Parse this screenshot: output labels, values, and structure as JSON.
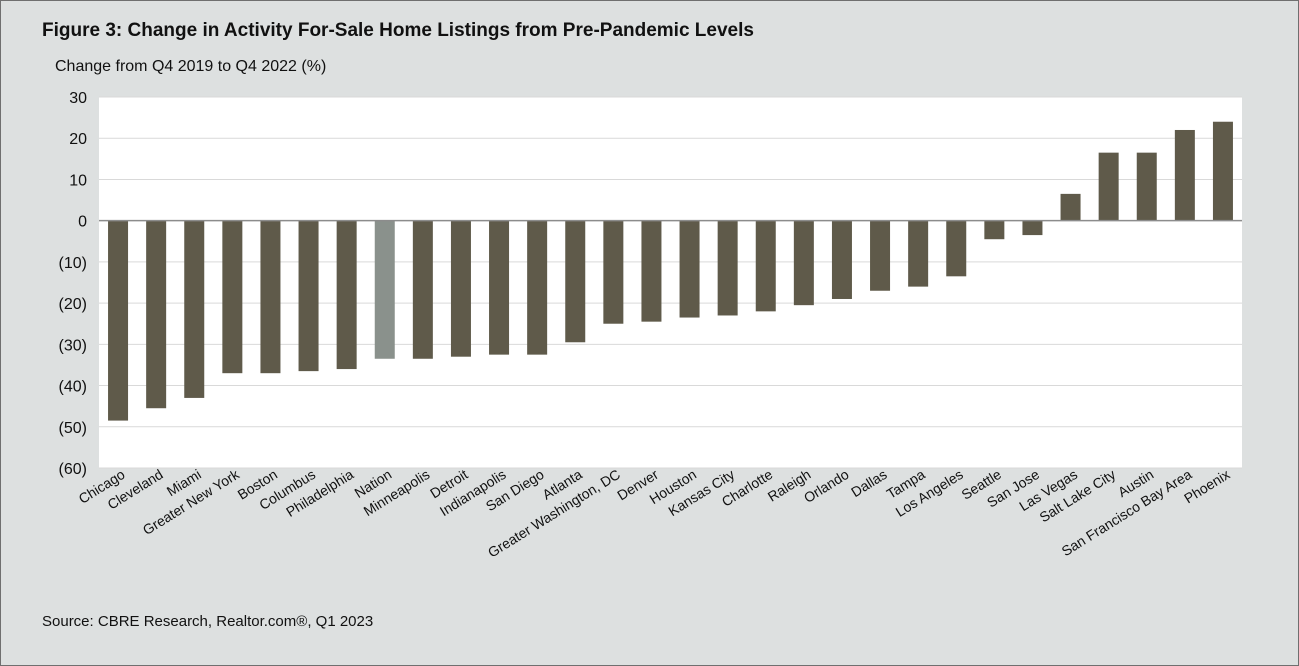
{
  "title": "Figure 3: Change in Activity For-Sale Home Listings from Pre-Pandemic Levels",
  "source": "Source: CBRE Research, Realtor.com®, Q1 2023",
  "colors": {
    "bar": "#5f5a4a",
    "highlight": "#8a918c",
    "plot_bg": "#ffffff",
    "grid": "#d9d9d9",
    "page_bg": "#dde0e0"
  },
  "chart_data": {
    "type": "bar",
    "title": "Figure 3: Change in Activity For-Sale Home Listings from Pre-Pandemic Levels",
    "ylabel": "Change from Q4 2019 to Q4 2022 (%)",
    "xlabel": "",
    "ylim": [
      -60,
      30
    ],
    "yticks": [
      30,
      20,
      10,
      0,
      -10,
      -20,
      -30,
      -40,
      -50,
      -60
    ],
    "ytick_labels": [
      "30",
      "20",
      "10",
      "0",
      "(10)",
      "(20)",
      "(30)",
      "(40)",
      "(50)",
      "(60)"
    ],
    "grid": true,
    "highlight_category": "Nation",
    "categories": [
      "Chicago",
      "Cleveland",
      "Miami",
      "Greater New York",
      "Boston",
      "Columbus",
      "Philadelphia",
      "Nation",
      "Minneapolis",
      "Detroit",
      "Indianapolis",
      "San Diego",
      "Atlanta",
      "Greater Washington, DC",
      "Denver",
      "Houston",
      "Kansas City",
      "Charlotte",
      "Raleigh",
      "Orlando",
      "Dallas",
      "Tampa",
      "Los Angeles",
      "Seattle",
      "San Jose",
      "Las Vegas",
      "Salt Lake City",
      "Austin",
      "San Francisco Bay Area",
      "Phoenix"
    ],
    "values": [
      -48.5,
      -45.5,
      -43,
      -37,
      -37,
      -36.5,
      -36,
      -33.5,
      -33.5,
      -33,
      -32.5,
      -32.5,
      -29.5,
      -25,
      -24.5,
      -23.5,
      -23,
      -22,
      -20.5,
      -19,
      -17,
      -16,
      -13.5,
      -4.5,
      -3.5,
      6.5,
      16.5,
      16.5,
      22,
      24
    ]
  }
}
